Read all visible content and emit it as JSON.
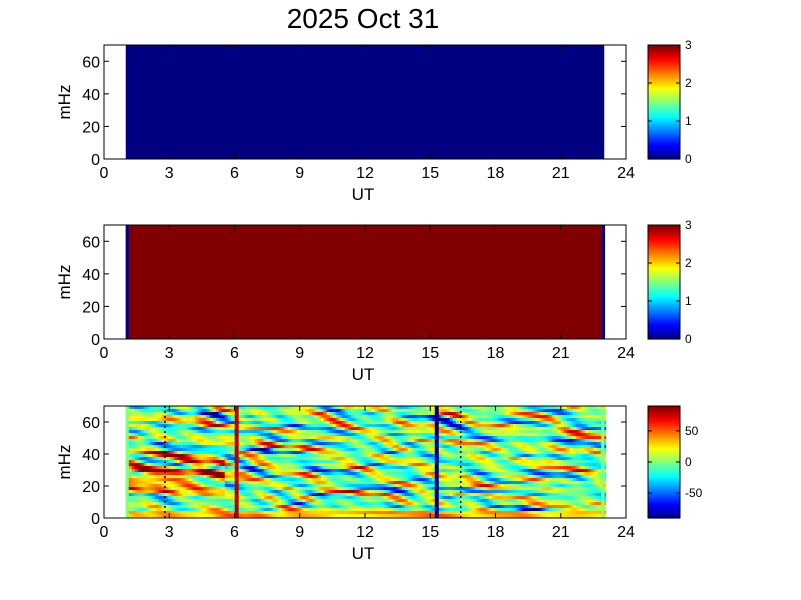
{
  "figure": {
    "title": "2025 Oct 31"
  },
  "chart_data": [
    {
      "type": "heatmap",
      "panel": 1,
      "xlabel": "UT",
      "ylabel": "mHz",
      "xlim": [
        0,
        24
      ],
      "ylim": [
        0,
        70
      ],
      "xticks": [
        0,
        3,
        6,
        9,
        12,
        15,
        18,
        21,
        24
      ],
      "yticks": [
        0,
        20,
        40,
        60
      ],
      "data_x_range": [
        1.0,
        23.0
      ],
      "fill_value": 0,
      "colorbar": {
        "range": [
          0,
          3
        ],
        "ticks": [
          0,
          1,
          2,
          3
        ]
      }
    },
    {
      "type": "heatmap",
      "panel": 2,
      "xlabel": "UT",
      "ylabel": "mHz",
      "xlim": [
        0,
        24
      ],
      "ylim": [
        0,
        70
      ],
      "xticks": [
        0,
        3,
        6,
        9,
        12,
        15,
        18,
        21,
        24
      ],
      "yticks": [
        0,
        20,
        40,
        60
      ],
      "data_x_range": [
        1.0,
        23.0
      ],
      "fill_value": 3,
      "edge_value": 0,
      "edge_columns": [
        1.0,
        22.9
      ],
      "colorbar": {
        "range": [
          0,
          3
        ],
        "ticks": [
          0,
          1,
          2,
          3
        ]
      }
    },
    {
      "type": "heatmap",
      "panel": 3,
      "xlabel": "UT",
      "ylabel": "mHz",
      "xlim": [
        0,
        24
      ],
      "ylim": [
        0,
        70
      ],
      "xticks": [
        0,
        3,
        6,
        9,
        12,
        15,
        18,
        21,
        24
      ],
      "yticks": [
        0,
        20,
        40,
        60
      ],
      "data_x_range": [
        1.0,
        23.0
      ],
      "value_range": [
        -90,
        90
      ],
      "colorbar": {
        "range": [
          -90,
          90
        ],
        "ticks": [
          50,
          0,
          -50
        ]
      },
      "bands": [
        {
          "x": 6.1,
          "value": 80
        },
        {
          "x": 15.3,
          "value": -90
        }
      ],
      "dotted_lines": [
        2.8,
        16.4
      ]
    }
  ]
}
